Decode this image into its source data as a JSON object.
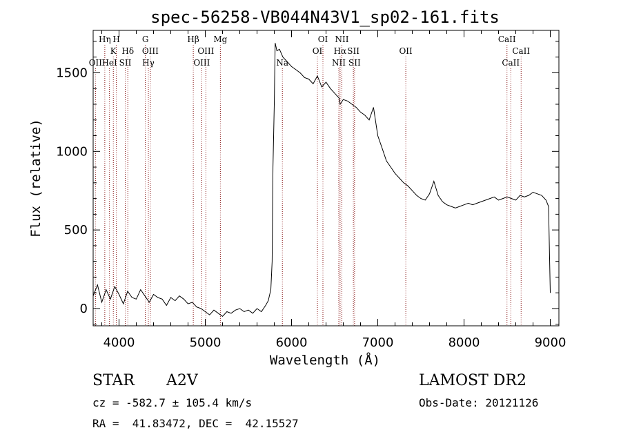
{
  "chart_data": {
    "type": "line",
    "title": "spec-56258-VB044N43V1_sp02-161.fits",
    "xlabel": "Wavelength (Å)",
    "ylabel": "Flux (relative)",
    "xlim": [
      3700,
      9100
    ],
    "ylim": [
      -110,
      1770
    ],
    "xticks": [
      4000,
      5000,
      6000,
      7000,
      8000,
      9000
    ],
    "yticks": [
      0,
      500,
      1000,
      1500
    ],
    "grid": false,
    "series": [
      {
        "x": [
          3700,
          3750,
          3800,
          3850,
          3900,
          3950,
          4000,
          4050,
          4100,
          4150,
          4200,
          4250,
          4300,
          4350,
          4400,
          4450,
          4500,
          4550,
          4600,
          4650,
          4700,
          4750,
          4800,
          4850,
          4900,
          4950,
          5000,
          5050,
          5100,
          5150,
          5200,
          5250,
          5300,
          5350,
          5400,
          5450,
          5500,
          5550,
          5600,
          5650,
          5700,
          5730,
          5760,
          5775,
          5785,
          5800,
          5810,
          5830,
          5860,
          5900,
          5950,
          6000,
          6050,
          6100,
          6150,
          6200,
          6250,
          6300,
          6350,
          6400,
          6450,
          6500,
          6550,
          6563,
          6600,
          6650,
          6700,
          6750,
          6800,
          6850,
          6900,
          6950,
          7000,
          7050,
          7100,
          7150,
          7200,
          7250,
          7300,
          7350,
          7400,
          7450,
          7500,
          7550,
          7600,
          7650,
          7700,
          7750,
          7800,
          7850,
          7900,
          7950,
          8000,
          8050,
          8100,
          8150,
          8200,
          8250,
          8300,
          8350,
          8400,
          8450,
          8500,
          8550,
          8600,
          8650,
          8700,
          8750,
          8800,
          8850,
          8900,
          8950,
          8980,
          9000
        ],
        "y": [
          80,
          150,
          40,
          120,
          60,
          140,
          90,
          30,
          110,
          70,
          60,
          120,
          80,
          40,
          90,
          70,
          60,
          20,
          70,
          50,
          80,
          60,
          30,
          40,
          10,
          0,
          -20,
          -40,
          -10,
          -30,
          -50,
          -20,
          -30,
          -10,
          0,
          -20,
          -10,
          -30,
          0,
          -20,
          20,
          50,
          120,
          300,
          900,
          1300,
          1690,
          1640,
          1650,
          1600,
          1570,
          1540,
          1520,
          1500,
          1470,
          1460,
          1430,
          1480,
          1410,
          1440,
          1400,
          1370,
          1340,
          1300,
          1330,
          1320,
          1300,
          1280,
          1250,
          1230,
          1200,
          1280,
          1100,
          1020,
          940,
          900,
          860,
          830,
          800,
          780,
          750,
          720,
          700,
          690,
          730,
          810,
          720,
          680,
          660,
          650,
          640,
          650,
          660,
          670,
          660,
          670,
          680,
          690,
          700,
          710,
          690,
          700,
          710,
          700,
          690,
          720,
          710,
          720,
          740,
          730,
          720,
          690,
          650,
          100
        ]
      }
    ],
    "line_markers": [
      {
        "label": "OII",
        "wavelength": 3727,
        "row": 3
      },
      {
        "label": "Hη",
        "wavelength": 3835,
        "row": 1
      },
      {
        "label": "K",
        "wavelength": 3934,
        "row": 2
      },
      {
        "label": "HeI",
        "wavelength": 3889,
        "row": 3
      },
      {
        "label": "H",
        "wavelength": 3969,
        "row": 1
      },
      {
        "label": "SII",
        "wavelength": 4072,
        "row": 3
      },
      {
        "label": "Hδ",
        "wavelength": 4102,
        "row": 2
      },
      {
        "label": "G",
        "wavelength": 4305,
        "row": 1
      },
      {
        "label": "OIII",
        "wavelength": 4363,
        "row": 2
      },
      {
        "label": "Hγ",
        "wavelength": 4340,
        "row": 3
      },
      {
        "label": "Hβ",
        "wavelength": 4861,
        "row": 1
      },
      {
        "label": "OIII",
        "wavelength": 5007,
        "row": 2
      },
      {
        "label": "OIII",
        "wavelength": 4959,
        "row": 3
      },
      {
        "label": "Mg",
        "wavelength": 5175,
        "row": 1
      },
      {
        "label": "Na",
        "wavelength": 5894,
        "row": 3
      },
      {
        "label": "OI",
        "wavelength": 6364,
        "row": 1
      },
      {
        "label": "OI",
        "wavelength": 6300,
        "row": 2
      },
      {
        "label": "NII",
        "wavelength": 6584,
        "row": 1
      },
      {
        "label": "Hα",
        "wavelength": 6563,
        "row": 2
      },
      {
        "label": "NII",
        "wavelength": 6548,
        "row": 3
      },
      {
        "label": "SII",
        "wavelength": 6717,
        "row": 2
      },
      {
        "label": "SII",
        "wavelength": 6731,
        "row": 3
      },
      {
        "label": "OII",
        "wavelength": 7325,
        "row": 2
      },
      {
        "label": "CaII",
        "wavelength": 8498,
        "row": 1
      },
      {
        "label": "CaII",
        "wavelength": 8662,
        "row": 2
      },
      {
        "label": "CaII",
        "wavelength": 8542,
        "row": 3
      }
    ]
  },
  "info": {
    "object_class": "STAR",
    "subclass": "A2V",
    "cz_line": "cz = -582.7 ± 105.4 km/s",
    "radec_line": "RA =  41.83472, DEC =  42.15527",
    "survey": "LAMOST DR2",
    "obs_date_line": "Obs-Date: 20121126"
  },
  "colors": {
    "spectrum": "#000000",
    "line_marker": "#8b1a1a",
    "axes": "#000000",
    "background": "#ffffff"
  }
}
